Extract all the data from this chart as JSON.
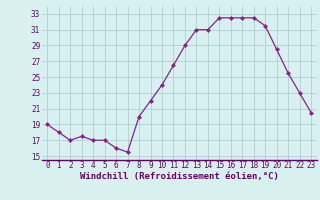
{
  "hours": [
    0,
    1,
    2,
    3,
    4,
    5,
    6,
    7,
    8,
    9,
    10,
    11,
    12,
    13,
    14,
    15,
    16,
    17,
    18,
    19,
    20,
    21,
    22,
    23
  ],
  "values": [
    19,
    18,
    17,
    17.5,
    17,
    17,
    16,
    15.5,
    20,
    22,
    24,
    26.5,
    29,
    31,
    31,
    32.5,
    32.5,
    32.5,
    32.5,
    31.5,
    28.5,
    25.5,
    23,
    20.5
  ],
  "line_color": "#882288",
  "marker": "D",
  "marker_size": 2,
  "bg_color": "#d8f0f0",
  "grid_color": "#aacaca",
  "xlabel": "Windchill (Refroidissement éolien,°C)",
  "ylim": [
    14.5,
    34
  ],
  "xlim": [
    -0.5,
    23.5
  ],
  "yticks": [
    15,
    17,
    19,
    21,
    23,
    25,
    27,
    29,
    31,
    33
  ],
  "xticks": [
    0,
    1,
    2,
    3,
    4,
    5,
    6,
    7,
    8,
    9,
    10,
    11,
    12,
    13,
    14,
    15,
    16,
    17,
    18,
    19,
    20,
    21,
    22,
    23
  ],
  "tick_fontsize": 5.5,
  "xlabel_fontsize": 6.5,
  "xlabel_bold": true
}
